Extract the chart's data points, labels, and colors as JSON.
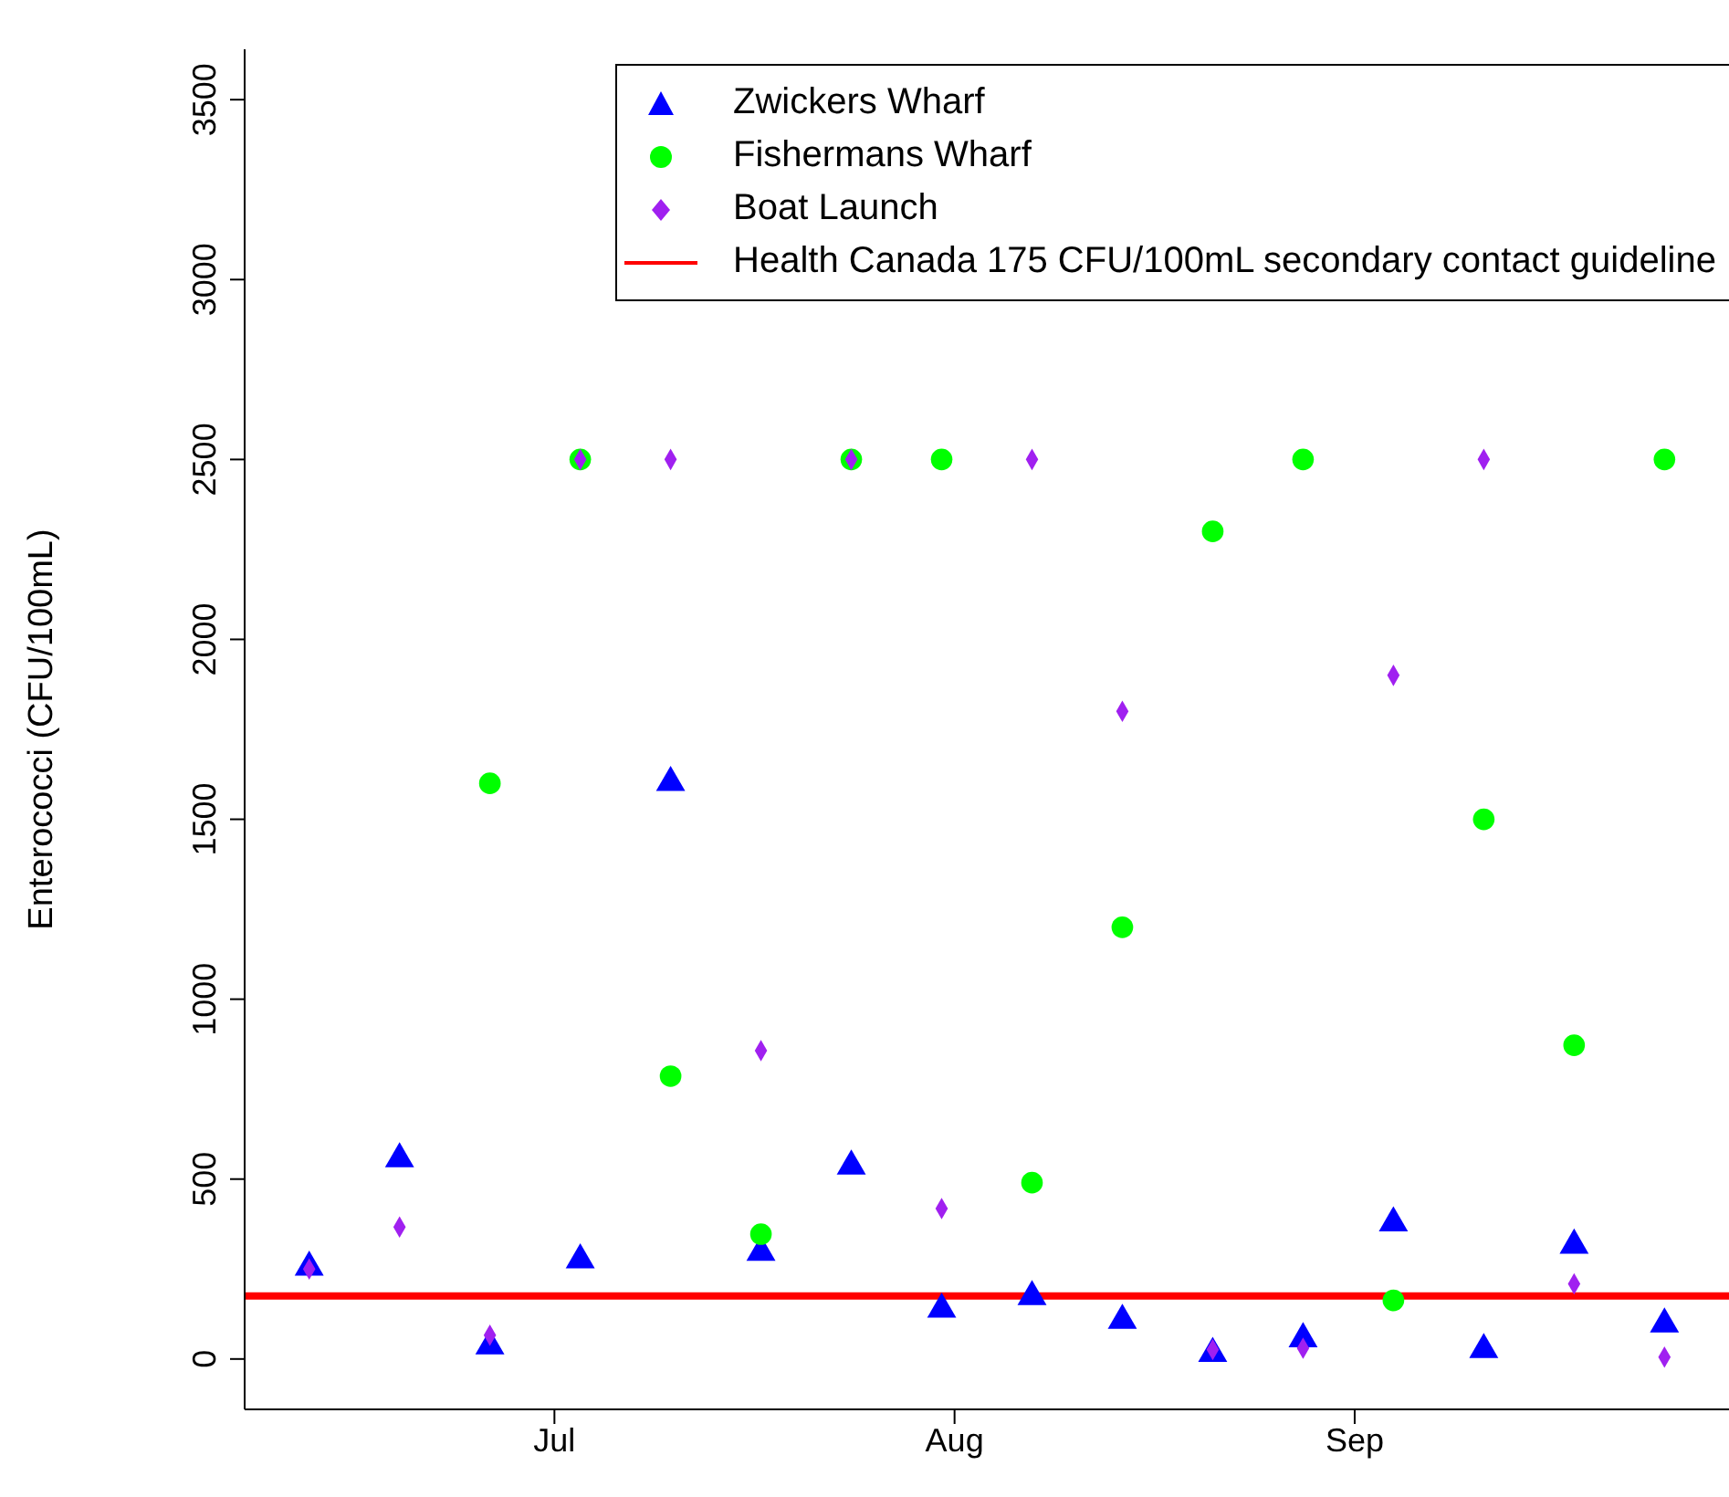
{
  "chart_data": {
    "type": "scatter",
    "ylabel": "Enterococci (CFU/100mL)",
    "x": [
      "--06-12",
      "--06-19",
      "--06-26",
      "--07-03",
      "--07-10",
      "--07-17",
      "--07-24",
      "--07-31",
      "--08-07",
      "--08-14",
      "--08-21",
      "--08-28",
      "--09-04",
      "--09-11",
      "--09-18",
      "--09-25"
    ],
    "series": [
      {
        "name": "Zwickers Wharf",
        "color": "#0000ff",
        "marker": "triangle",
        "values": [
          255,
          556,
          36,
          275,
          1602,
          296,
          536,
          138,
          173,
          107,
          15,
          56,
          378,
          26,
          316,
          97
        ]
      },
      {
        "name": "Fishermans Wharf",
        "color": "#00ff00",
        "marker": "circle",
        "values": [
          null,
          null,
          1600,
          2500,
          786,
          347,
          2500,
          2500,
          490,
          1200,
          2300,
          2500,
          163,
          1500,
          872,
          2500
        ]
      },
      {
        "name": "Boat Launch",
        "color": "#a020f0",
        "marker": "diamond",
        "values": [
          250,
          367,
          66,
          2500,
          2500,
          857,
          2500,
          418,
          2500,
          1800,
          26,
          30,
          1900,
          2500,
          209,
          5
        ]
      }
    ],
    "ref_lines": [
      {
        "axis": "y",
        "value": 175,
        "label": "Health Canada 175 CFU/100mL secondary contact guideline",
        "color": "#ff0000"
      }
    ],
    "xlim": [
      "--06-07",
      "--09-30"
    ],
    "xticks": [
      {
        "value": "--07-01",
        "label": "Jul"
      },
      {
        "value": "--08-01",
        "label": "Aug"
      },
      {
        "value": "--09-01",
        "label": "Sep"
      }
    ],
    "ylim": [
      -140,
      3640
    ],
    "yticks": [
      0,
      500,
      1000,
      1500,
      2000,
      2500,
      3000,
      3500
    ],
    "grid": false,
    "legend": "top right"
  }
}
